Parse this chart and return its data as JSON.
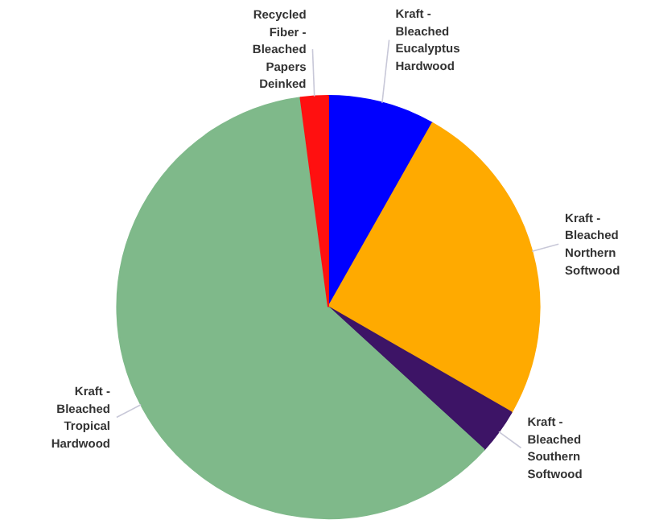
{
  "chart_data": {
    "type": "pie",
    "categories": [
      "Kraft - Bleached Eucalyptus Hardwood",
      "Kraft - Bleached Northern Softwood",
      "Kraft - Bleached Southern Softwood",
      "Kraft - Bleached Tropical Hardwood",
      "Recycled Fiber - Bleached Papers Deinked"
    ],
    "values": [
      8.2,
      25.1,
      3.5,
      61.1,
      2.1
    ],
    "colors": [
      "#0000ff",
      "#ffaa00",
      "#3d1466",
      "#7fb98a",
      "#ff1010"
    ]
  }
}
